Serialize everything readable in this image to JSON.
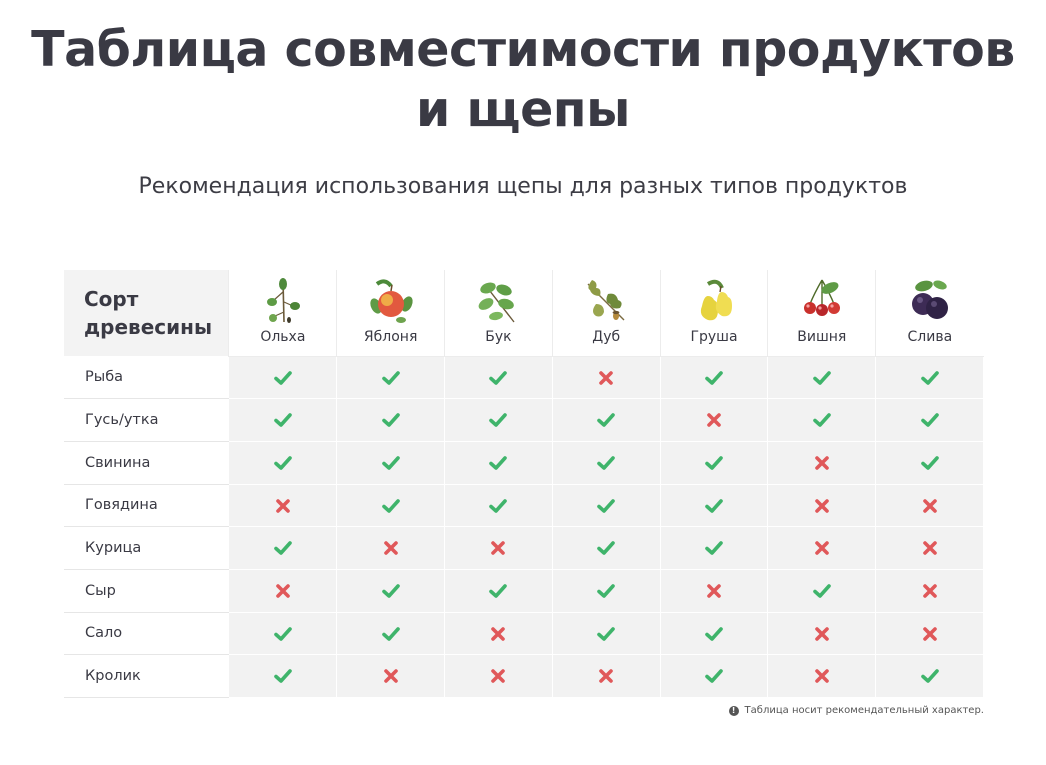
{
  "title_line1": "Таблица совместимости продуктов",
  "title_line2": "и щепы",
  "subtitle": "Рекомендация использования щепы для разных типов продуктов",
  "corner_label": "Сорт древесины",
  "woods": [
    {
      "name": "Ольха",
      "icon": "alder-icon"
    },
    {
      "name": "Яблоня",
      "icon": "apple-icon"
    },
    {
      "name": "Бук",
      "icon": "beech-icon"
    },
    {
      "name": "Дуб",
      "icon": "oak-icon"
    },
    {
      "name": "Груша",
      "icon": "pear-icon"
    },
    {
      "name": "Вишня",
      "icon": "cherry-icon"
    },
    {
      "name": "Слива",
      "icon": "plum-icon"
    }
  ],
  "rows": [
    {
      "label": "Рыба",
      "values": [
        true,
        true,
        true,
        false,
        true,
        true,
        true
      ]
    },
    {
      "label": "Гусь/утка",
      "values": [
        true,
        true,
        true,
        true,
        false,
        true,
        true
      ]
    },
    {
      "label": "Свинина",
      "values": [
        true,
        true,
        true,
        true,
        true,
        false,
        true
      ]
    },
    {
      "label": "Говядина",
      "values": [
        false,
        true,
        true,
        true,
        true,
        false,
        false
      ]
    },
    {
      "label": "Курица",
      "values": [
        true,
        false,
        false,
        true,
        true,
        false,
        false
      ]
    },
    {
      "label": "Сыр",
      "values": [
        false,
        true,
        true,
        true,
        false,
        true,
        false
      ]
    },
    {
      "label": "Сало",
      "values": [
        true,
        true,
        false,
        true,
        true,
        false,
        false
      ]
    },
    {
      "label": "Кролик",
      "values": [
        true,
        false,
        false,
        false,
        true,
        false,
        true
      ]
    }
  ],
  "note": "Таблица носит рекомендательный характер.",
  "colors": {
    "check": "#3fb46b",
    "cross": "#e0585a",
    "cell_bg": "#f2f2f2",
    "title": "#3a3a44"
  }
}
